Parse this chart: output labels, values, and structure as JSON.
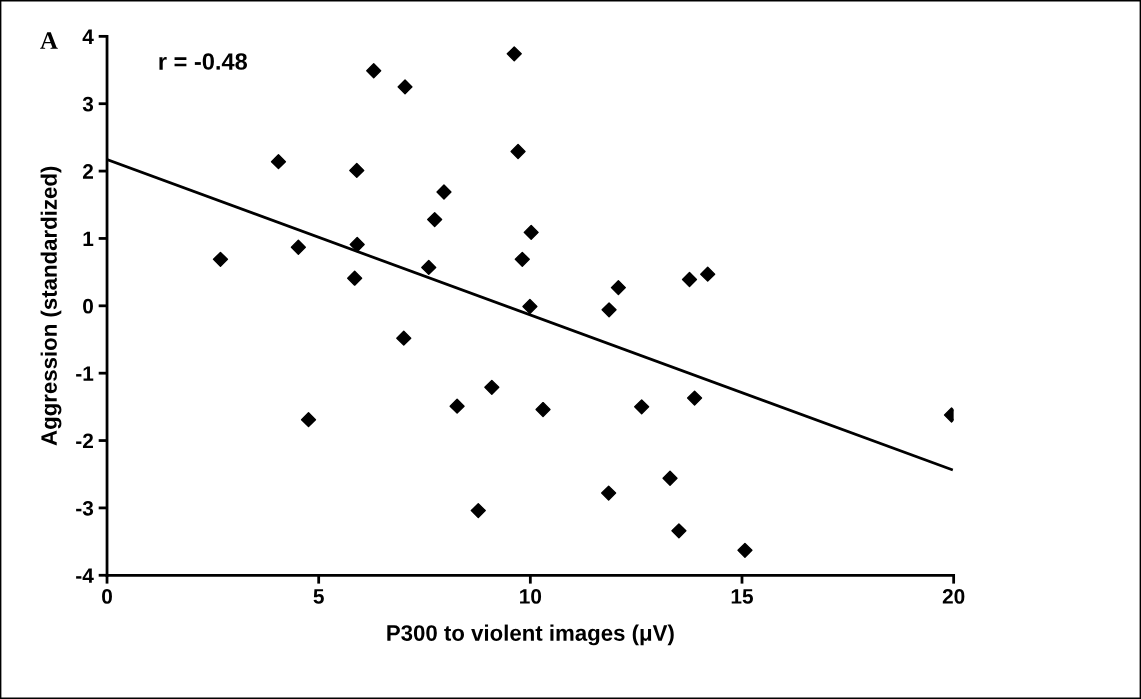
{
  "chart_data": {
    "type": "scatter",
    "xlabel": "P300 to violent images (μV)",
    "ylabel": "Aggression (standardized)",
    "annotations": [
      "A",
      "r = -0.48"
    ],
    "xlim": [
      0,
      20
    ],
    "xticks": [
      0,
      5,
      10,
      15,
      20
    ],
    "ylim": [
      -4,
      4
    ],
    "yticks": [
      -4,
      -3,
      -2,
      -1,
      0,
      1,
      2,
      3,
      4
    ],
    "grid": false,
    "legend": false,
    "marker": "diamond",
    "series": [
      {
        "color": "#000000",
        "x": [
          2.68,
          4.05,
          4.52,
          4.76,
          5.85,
          5.9,
          5.91,
          6.3,
          7.04,
          7.01,
          7.6,
          7.74,
          7.96,
          8.27,
          8.77,
          9.09,
          9.62,
          9.71,
          9.81,
          9.99,
          10.02,
          10.3,
          11.86,
          12.08,
          11.85,
          12.63,
          13.3,
          13.51,
          13.76,
          13.88,
          14.19,
          15.07,
          19.95
        ],
        "values": [
          0.69,
          2.14,
          0.87,
          -1.69,
          0.41,
          2.01,
          0.91,
          3.49,
          3.25,
          -0.48,
          0.57,
          1.28,
          1.69,
          -1.49,
          -3.04,
          -1.21,
          3.74,
          2.29,
          0.69,
          -0.01,
          1.09,
          -1.54,
          -0.06,
          0.27,
          -2.78,
          -1.5,
          -2.56,
          -3.34,
          0.39,
          -1.37,
          0.47,
          -3.63,
          -1.62
        ]
      },
      {
        "type": "line",
        "color": "#000000",
        "line_style": "solid",
        "marker": "none",
        "x": [
          0,
          19.95
        ],
        "values": [
          2.17,
          -2.43
        ]
      }
    ]
  }
}
